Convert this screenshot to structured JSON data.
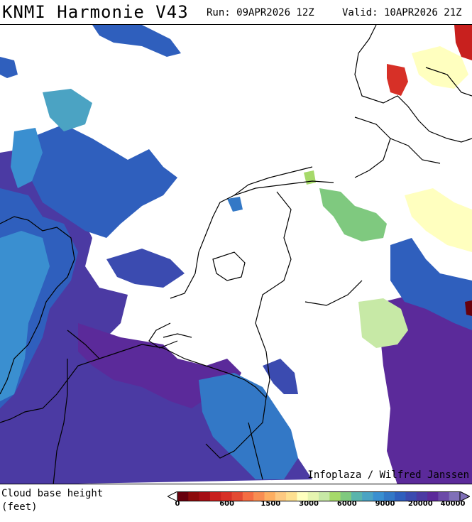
{
  "header": {
    "title": "KNMI Harmonie V43",
    "run": "Run: 09APR2026 12Z",
    "valid": "Valid: 10APR2026 21Z"
  },
  "map": {
    "credit": "Infoplaza / Wilfred Janssen"
  },
  "legend": {
    "variable_line1": "Cloud base height",
    "variable_line2": "(feet)",
    "ticks": [
      "0",
      "600",
      "1500",
      "3000",
      "6000",
      "9000",
      "20000",
      "40000"
    ],
    "colors": [
      "#67000d",
      "#8c0b0b",
      "#a50f15",
      "#c8201e",
      "#d73027",
      "#e34a33",
      "#f46d43",
      "#f88d52",
      "#fdae61",
      "#fdc981",
      "#fee090",
      "#ffffbf",
      "#e6f5b0",
      "#c7e9a6",
      "#a6d96a",
      "#7fc97f",
      "#5ab4ac",
      "#4ba3c3",
      "#3a8fd0",
      "#3378c6",
      "#2f5fbd",
      "#3b4bb0",
      "#4b3aa3",
      "#5b2a9a",
      "#6b4aa8",
      "#8070b8"
    ]
  },
  "colors": {
    "deep_purple": "#5b2a9a",
    "dark_blue": "#3b4bb0",
    "mid_blue": "#2f5fbd",
    "light_blue": "#3a8fd0",
    "cyan_blue": "#4ba3c3",
    "green": "#7fc97f",
    "light_green": "#c7e9a6",
    "pale_yellow": "#ffffbf",
    "red": "#d73027"
  }
}
